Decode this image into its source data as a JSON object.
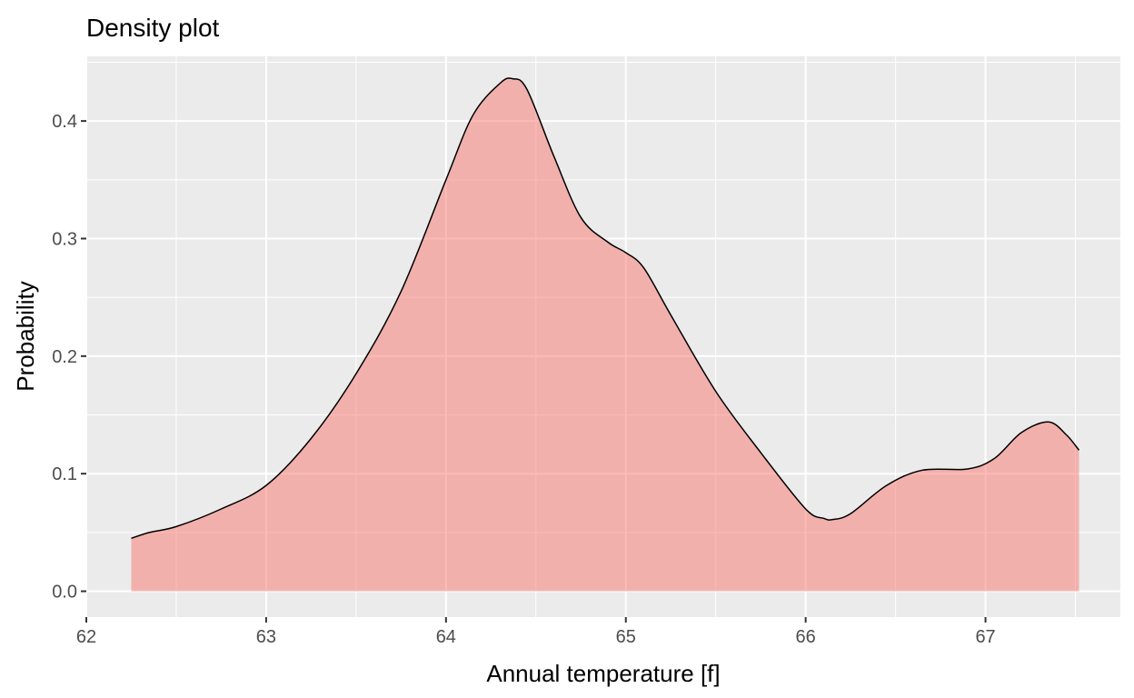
{
  "chart_data": {
    "type": "area",
    "title": "Density plot",
    "xlabel": "Annual temperature [f]",
    "ylabel": "Probability",
    "xlim": [
      62,
      67.75
    ],
    "ylim": [
      -0.022,
      0.455
    ],
    "x_ticks": [
      62,
      63,
      64,
      65,
      66,
      67
    ],
    "x_tick_labels": [
      "62",
      "63",
      "64",
      "65",
      "66",
      "67"
    ],
    "y_ticks": [
      0.0,
      0.1,
      0.2,
      0.3,
      0.4
    ],
    "y_tick_labels": [
      "0.0",
      "0.1",
      "0.2",
      "0.3",
      "0.4"
    ],
    "grid": true,
    "background": "#ebebeb",
    "grid_color": "#ffffff",
    "fill_color": "#f8766d",
    "fill_opacity": 0.5,
    "line_color": "#000000",
    "x": [
      62.25,
      62.35,
      62.5,
      62.75,
      63.0,
      63.25,
      63.5,
      63.75,
      64.0,
      64.15,
      64.3,
      64.37,
      64.45,
      64.6,
      64.75,
      64.9,
      65.0,
      65.1,
      65.25,
      65.5,
      65.75,
      66.0,
      66.1,
      66.15,
      66.25,
      66.45,
      66.65,
      66.9,
      67.05,
      67.2,
      67.35,
      67.45,
      67.52
    ],
    "y": [
      0.045,
      0.05,
      0.055,
      0.07,
      0.09,
      0.13,
      0.185,
      0.255,
      0.35,
      0.405,
      0.432,
      0.436,
      0.427,
      0.37,
      0.318,
      0.297,
      0.288,
      0.275,
      0.235,
      0.17,
      0.118,
      0.07,
      0.062,
      0.061,
      0.066,
      0.09,
      0.103,
      0.104,
      0.113,
      0.135,
      0.144,
      0.133,
      0.12
    ]
  }
}
